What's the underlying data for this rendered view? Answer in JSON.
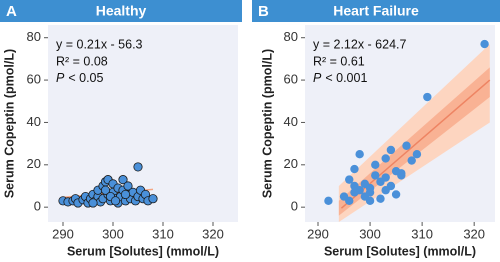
{
  "chart_data": [
    {
      "type": "scatter",
      "panel_label": "A",
      "title": "Healthy",
      "x_label": "Serum [Solutes] (mmol/L)",
      "y_label": "Serum Copeptin (pmol/L)",
      "equation": "y = 0.21x - 56.3",
      "r2": "R² = 0.08",
      "p_symbol": "P",
      "p_text": "< 0.05",
      "xlim": [
        287,
        325
      ],
      "ylim": [
        -7,
        86
      ],
      "xticks": [
        290,
        300,
        310,
        320
      ],
      "yticks": [
        0,
        20,
        40,
        60,
        80
      ],
      "color": "#4a90d9",
      "point_stroke": "#1a1a1a",
      "x": [
        290,
        291,
        292,
        292.5,
        293,
        294,
        294.5,
        295,
        295.5,
        296,
        296.5,
        297,
        297,
        297.5,
        298,
        298,
        298.5,
        299,
        299,
        299.5,
        300,
        300,
        300.5,
        301,
        301,
        301.5,
        302,
        302,
        302.5,
        303,
        303,
        303.5,
        304,
        304.5,
        305,
        305,
        305.5,
        306,
        306.5,
        307,
        308,
        298.5,
        299.5,
        300.5,
        296,
        302.5
      ],
      "values": [
        3,
        2.5,
        3,
        4,
        2,
        3.5,
        5,
        2,
        4,
        6,
        3,
        5,
        8,
        2.5,
        10,
        4,
        12,
        6,
        13,
        3,
        7,
        11,
        4,
        9,
        2,
        5,
        8,
        13,
        3,
        6,
        10,
        4,
        7,
        3,
        19,
        5,
        8,
        4,
        6,
        3,
        4,
        8,
        5,
        3,
        2,
        6
      ],
      "band": {
        "color": "#fddcc8",
        "x": [
          290,
          308
        ],
        "lower": [
          1,
          2.5
        ],
        "upper": [
          8.5,
          13
        ]
      },
      "fit": {
        "color": "#f4a582",
        "x": [
          290,
          308
        ],
        "y": [
          4.6,
          8.4
        ]
      }
    },
    {
      "type": "scatter",
      "panel_label": "B",
      "title": "Heart Failure",
      "x_label": "Serum [Solutes] (mmol/L)",
      "y_label": "Serum Copeptin (pmol/L)",
      "equation": "y = 2.12x - 624.7",
      "r2": "R² = 0.61",
      "p_symbol": "P",
      "p_text": "< 0.001",
      "xlim": [
        287.5,
        324
      ],
      "ylim": [
        -7,
        86
      ],
      "xticks": [
        290,
        300,
        310,
        320
      ],
      "yticks": [
        0,
        20,
        40,
        60,
        80
      ],
      "color": "#4a90d9",
      "point_stroke": "none",
      "x": [
        292,
        295,
        296,
        297,
        297,
        298,
        298,
        299,
        299,
        300,
        300,
        300,
        301,
        301,
        302,
        302,
        303,
        303,
        304,
        304,
        305,
        305,
        306,
        306,
        307,
        308,
        309,
        311,
        322,
        296,
        297,
        303
      ],
      "values": [
        3,
        5,
        13,
        18,
        10,
        8,
        25,
        5,
        11,
        3,
        9,
        7,
        15,
        20,
        12,
        4,
        23,
        8,
        10,
        27,
        17,
        6,
        16,
        15,
        29,
        22,
        25,
        52,
        77,
        3,
        7,
        14
      ],
      "band": {
        "color": "#fdd5c0",
        "x": [
          294,
          323
        ],
        "lower": [
          -7,
          40
        ],
        "upper": [
          10,
          77
        ]
      },
      "inner_band": {
        "color": "#f9b294",
        "x": [
          294,
          323
        ],
        "lower": [
          -4,
          52
        ],
        "upper": [
          3,
          66
        ]
      },
      "fit": {
        "color": "#ee8463",
        "x": [
          294.5,
          323
        ],
        "y": [
          -0.5,
          60
        ]
      }
    }
  ]
}
